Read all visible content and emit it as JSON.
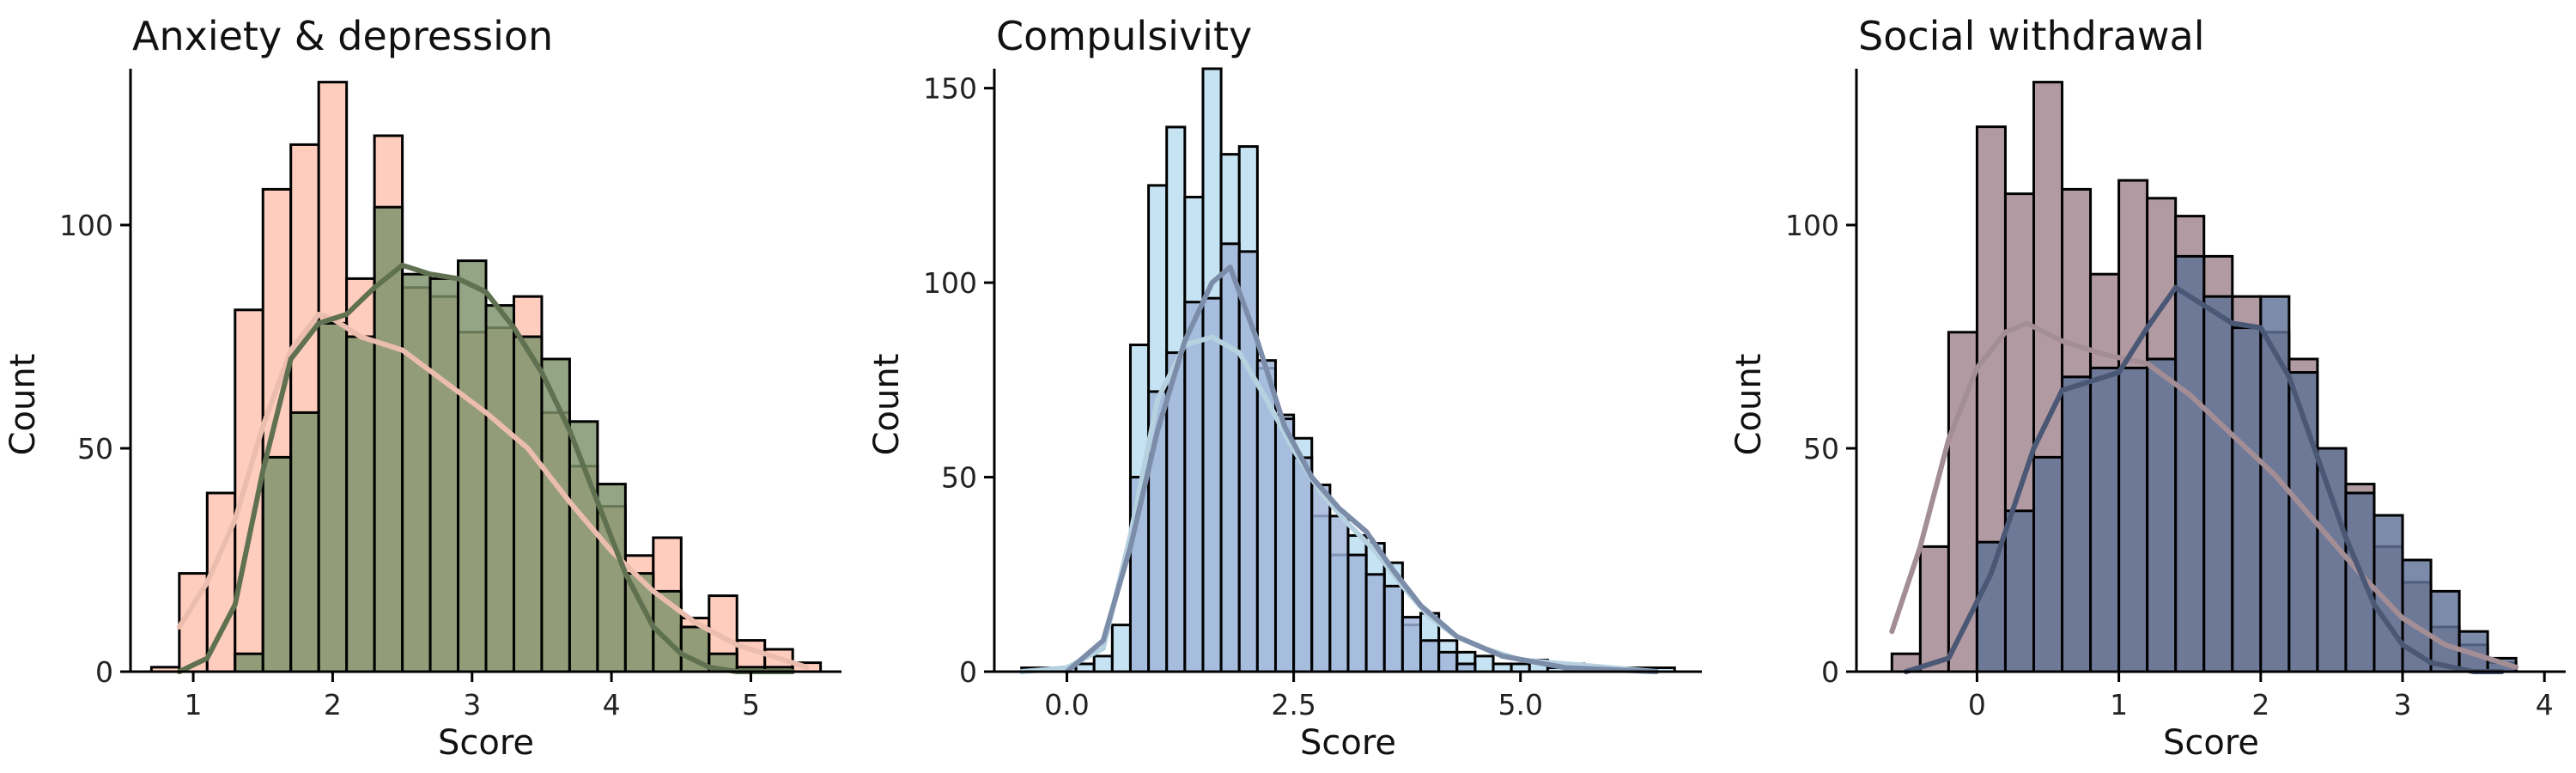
{
  "chart_data": [
    {
      "type": "histogram",
      "title": "Anxiety & depression",
      "xlabel": "Score",
      "ylabel": "Count",
      "xlim": [
        0.55,
        5.65
      ],
      "ylim": [
        0,
        135
      ],
      "xticks": [
        1,
        2,
        3,
        4,
        5
      ],
      "yticks": [
        0,
        50,
        100
      ],
      "grid": false,
      "legend": "none",
      "series": [
        {
          "color": "#FFCDBE",
          "edges": [
            0.7,
            0.9,
            1.1,
            1.3,
            1.5,
            1.7,
            1.9,
            2.1,
            2.3,
            2.5,
            2.7,
            2.9,
            3.1,
            3.3,
            3.5,
            3.7,
            3.9,
            4.1,
            4.3,
            4.5,
            4.7,
            4.9,
            5.1,
            5.3,
            5.5
          ],
          "counts": [
            1,
            22,
            40,
            81,
            108,
            118,
            132,
            88,
            120,
            86,
            84,
            76,
            77,
            84,
            58,
            46,
            37,
            26,
            30,
            12,
            17,
            7,
            5,
            2
          ],
          "kde_x": [
            0.9,
            1.1,
            1.3,
            1.5,
            1.7,
            1.9,
            2.0,
            2.2,
            2.5,
            2.8,
            3.1,
            3.4,
            3.7,
            4.0,
            4.3,
            4.6,
            4.9,
            5.2,
            5.4
          ],
          "kde_y": [
            10,
            20,
            34,
            55,
            72,
            80,
            79,
            75,
            72,
            65,
            58,
            50,
            38,
            27,
            18,
            11,
            6,
            3,
            1
          ]
        },
        {
          "color": "#7B9169",
          "edges": [
            0.9,
            1.1,
            1.3,
            1.5,
            1.7,
            1.9,
            2.1,
            2.3,
            2.5,
            2.7,
            2.9,
            3.1,
            3.3,
            3.5,
            3.7,
            3.9,
            4.1,
            4.3,
            4.5,
            4.7,
            4.9,
            5.1,
            5.3
          ],
          "counts": [
            0,
            0,
            4,
            48,
            58,
            78,
            75,
            104,
            89,
            88,
            92,
            82,
            75,
            70,
            56,
            42,
            22,
            18,
            10,
            4,
            1,
            1
          ],
          "kde_x": [
            0.9,
            1.1,
            1.3,
            1.5,
            1.7,
            1.9,
            2.1,
            2.3,
            2.5,
            2.7,
            2.9,
            3.1,
            3.3,
            3.5,
            3.7,
            3.9,
            4.1,
            4.3,
            4.5,
            4.7,
            4.9,
            5.1,
            5.3
          ],
          "kde_y": [
            0,
            3,
            15,
            45,
            70,
            78,
            80,
            86,
            91,
            89,
            88,
            85,
            77,
            67,
            54,
            38,
            22,
            10,
            4,
            1,
            0,
            0,
            0
          ]
        }
      ]
    },
    {
      "type": "histogram",
      "title": "Compulsivity",
      "xlabel": "Score",
      "ylabel": "Count",
      "xlim": [
        -0.8,
        7.0
      ],
      "ylim": [
        0,
        155
      ],
      "xticks": [
        0,
        2.5,
        5
      ],
      "xtick_labels": [
        "0.0",
        "2.5",
        "5.0"
      ],
      "yticks": [
        0,
        50,
        100,
        150
      ],
      "grid": false,
      "legend": "none",
      "series": [
        {
          "color": "#C6E3F3",
          "edges": [
            -0.5,
            -0.3,
            -0.1,
            0.1,
            0.3,
            0.5,
            0.7,
            0.9,
            1.1,
            1.3,
            1.5,
            1.7,
            1.9,
            2.1,
            2.3,
            2.5,
            2.7,
            2.9,
            3.1,
            3.3,
            3.5,
            3.7,
            3.9,
            4.1,
            4.3,
            4.5,
            4.7,
            4.9,
            5.1,
            5.3,
            5.5,
            5.7,
            5.9,
            6.1,
            6.3,
            6.5,
            6.7
          ],
          "counts": [
            1,
            1,
            1,
            2,
            4,
            12,
            84,
            125,
            140,
            122,
            155,
            133,
            135,
            78,
            66,
            60,
            40,
            30,
            35,
            33,
            28,
            12,
            15,
            8,
            5,
            4,
            2,
            2,
            3,
            1,
            2,
            1,
            1,
            1,
            1,
            1
          ],
          "kde_x": [
            -0.5,
            0.0,
            0.4,
            0.7,
            1.0,
            1.3,
            1.6,
            1.9,
            2.2,
            2.5,
            2.8,
            3.1,
            3.4,
            3.7,
            4.0,
            4.3,
            4.6,
            5.0,
            5.5,
            6.0,
            6.5
          ],
          "kde_y": [
            0,
            1,
            6,
            35,
            70,
            84,
            86,
            82,
            70,
            57,
            46,
            38,
            31,
            22,
            14,
            9,
            6,
            3,
            2,
            1,
            0
          ]
        },
        {
          "color": "#9FB5D9",
          "edges": [
            0.7,
            0.9,
            1.1,
            1.3,
            1.5,
            1.7,
            1.9,
            2.1,
            2.3,
            2.5,
            2.7,
            2.9,
            3.1,
            3.3,
            3.5,
            3.7,
            3.9,
            4.1,
            4.3,
            4.5
          ],
          "counts": [
            50,
            72,
            82,
            95,
            96,
            110,
            108,
            80,
            65,
            55,
            48,
            40,
            30,
            25,
            22,
            14,
            8,
            5,
            2
          ],
          "kde_x": [
            0.0,
            0.4,
            0.7,
            1.0,
            1.3,
            1.6,
            1.8,
            2.1,
            2.4,
            2.7,
            3.0,
            3.3,
            3.6,
            3.9,
            4.3,
            4.8,
            5.5,
            6.5
          ],
          "kde_y": [
            0,
            8,
            32,
            62,
            85,
            100,
            104,
            85,
            63,
            50,
            42,
            36,
            26,
            17,
            9,
            4,
            1,
            0
          ]
        }
      ]
    },
    {
      "type": "histogram",
      "title": "Social withdrawal",
      "xlabel": "Score",
      "ylabel": "Count",
      "xlim": [
        -0.85,
        4.15
      ],
      "ylim": [
        0,
        135
      ],
      "xticks": [
        0,
        1,
        2,
        3,
        4
      ],
      "yticks": [
        0,
        50,
        100
      ],
      "grid": false,
      "legend": "none",
      "series": [
        {
          "color": "#B29AA3",
          "edges": [
            -0.6,
            -0.4,
            -0.2,
            0.0,
            0.2,
            0.4,
            0.6,
            0.8,
            1.0,
            1.2,
            1.4,
            1.6,
            1.8,
            2.0,
            2.2,
            2.4,
            2.6,
            2.8,
            3.0,
            3.2,
            3.4,
            3.6,
            3.8
          ],
          "counts": [
            4,
            28,
            76,
            122,
            107,
            132,
            108,
            89,
            110,
            106,
            102,
            93,
            84,
            76,
            70,
            50,
            42,
            28,
            20,
            10,
            6,
            2
          ],
          "kde_x": [
            -0.6,
            -0.4,
            -0.2,
            0.0,
            0.2,
            0.35,
            0.6,
            0.9,
            1.2,
            1.5,
            1.8,
            2.1,
            2.4,
            2.7,
            3.0,
            3.3,
            3.6,
            3.8
          ],
          "kde_y": [
            9,
            28,
            52,
            68,
            76,
            78,
            74,
            71,
            69,
            62,
            53,
            44,
            33,
            22,
            12,
            6,
            3,
            1
          ]
        },
        {
          "color": "#5F7196",
          "edges": [
            -0.2,
            0.0,
            0.2,
            0.4,
            0.6,
            0.8,
            1.0,
            1.2,
            1.4,
            1.6,
            1.8,
            2.0,
            2.2,
            2.4,
            2.6,
            2.8,
            3.0,
            3.2,
            3.4,
            3.6,
            3.8
          ],
          "counts": [
            0,
            29,
            36,
            48,
            66,
            68,
            68,
            70,
            93,
            84,
            77,
            84,
            67,
            50,
            40,
            35,
            25,
            18,
            9,
            3
          ],
          "kde_x": [
            -0.5,
            -0.2,
            0.1,
            0.4,
            0.6,
            0.8,
            1.0,
            1.2,
            1.4,
            1.6,
            1.8,
            2.0,
            2.2,
            2.4,
            2.6,
            2.8,
            3.0,
            3.2,
            3.5,
            3.7
          ],
          "kde_y": [
            0,
            3,
            22,
            50,
            63,
            65,
            67,
            77,
            86,
            82,
            78,
            77,
            66,
            48,
            30,
            15,
            6,
            2,
            0,
            0
          ]
        }
      ]
    }
  ]
}
